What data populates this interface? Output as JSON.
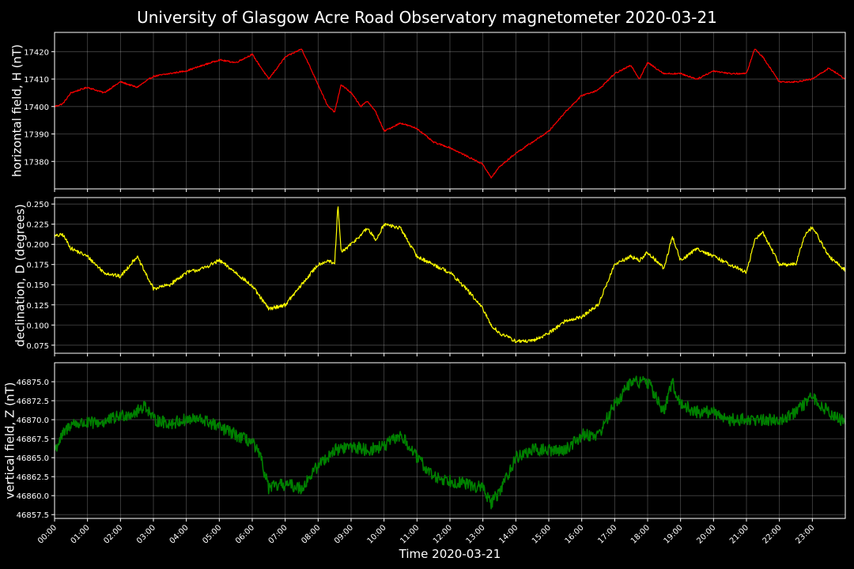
{
  "title": "University of Glasgow Acre Road Observatory magnetometer 2020-03-21",
  "chart_data": [
    {
      "type": "line",
      "ylabel": "horizontal field, H (nT)",
      "color": "#ff0000",
      "ylim": [
        17370,
        17427
      ],
      "yticks": [
        17380,
        17390,
        17400,
        17410,
        17420
      ],
      "ytick_labels": [
        "17380",
        "17390",
        "17400",
        "17410",
        "17420"
      ],
      "x_hours": [
        0,
        0.25,
        0.5,
        1,
        1.5,
        2,
        2.5,
        3,
        3.5,
        4,
        4.5,
        5,
        5.5,
        6,
        6.5,
        7,
        7.5,
        8,
        8.3,
        8.5,
        8.7,
        9,
        9.3,
        9.5,
        9.75,
        10,
        10.5,
        11,
        11.5,
        12,
        12.5,
        13,
        13.25,
        13.5,
        14,
        14.5,
        15,
        15.5,
        16,
        16.5,
        17,
        17.5,
        17.75,
        18,
        18.5,
        19,
        19.5,
        20,
        20.5,
        21,
        21.25,
        21.5,
        22,
        22.5,
        23,
        23.5,
        24
      ],
      "values": [
        17400,
        17401,
        17405,
        17407,
        17405,
        17409,
        17407,
        17411,
        17412,
        17413,
        17415,
        17417,
        17416,
        17419,
        17410,
        17418,
        17421,
        17408,
        17400,
        17398,
        17408,
        17405,
        17400,
        17402,
        17398,
        17391,
        17394,
        17392,
        17387,
        17385,
        17382,
        17379,
        17374,
        17378,
        17383,
        17387,
        17391,
        17398,
        17404,
        17406,
        17412,
        17415,
        17410,
        17416,
        17412,
        17412,
        17410,
        17413,
        17412,
        17412,
        17421,
        17418,
        17409,
        17409,
        17410,
        17414,
        17410
      ]
    },
    {
      "type": "line",
      "ylabel": "declination, D (degrees)",
      "color": "#ffff00",
      "ylim": [
        0.065,
        0.258
      ],
      "yticks": [
        0.075,
        0.1,
        0.125,
        0.15,
        0.175,
        0.2,
        0.225,
        0.25
      ],
      "ytick_labels": [
        "0.075",
        "0.100",
        "0.125",
        "0.150",
        "0.175",
        "0.200",
        "0.225",
        "0.250"
      ],
      "x_hours": [
        0,
        0.25,
        0.5,
        1,
        1.5,
        2,
        2.5,
        3,
        3.5,
        4,
        4.5,
        5,
        5.5,
        6,
        6.5,
        7,
        7.5,
        8,
        8.3,
        8.5,
        8.6,
        8.7,
        9,
        9.5,
        9.75,
        10,
        10.5,
        11,
        11.5,
        12,
        12.5,
        13,
        13.25,
        13.5,
        14,
        14.5,
        15,
        15.5,
        16,
        16.5,
        17,
        17.5,
        17.75,
        18,
        18.5,
        18.75,
        19,
        19.5,
        20,
        20.5,
        21,
        21.25,
        21.5,
        22,
        22.5,
        22.75,
        23,
        23.5,
        24
      ],
      "values": [
        0.21,
        0.212,
        0.195,
        0.185,
        0.165,
        0.16,
        0.185,
        0.145,
        0.15,
        0.165,
        0.17,
        0.18,
        0.165,
        0.148,
        0.12,
        0.125,
        0.15,
        0.175,
        0.18,
        0.175,
        0.248,
        0.19,
        0.2,
        0.22,
        0.205,
        0.225,
        0.22,
        0.185,
        0.175,
        0.165,
        0.145,
        0.12,
        0.1,
        0.09,
        0.08,
        0.08,
        0.09,
        0.105,
        0.11,
        0.125,
        0.175,
        0.185,
        0.18,
        0.19,
        0.17,
        0.21,
        0.18,
        0.195,
        0.185,
        0.175,
        0.165,
        0.205,
        0.215,
        0.175,
        0.175,
        0.21,
        0.222,
        0.185,
        0.168
      ]
    },
    {
      "type": "line",
      "ylabel": "vertical field, Z (nT)",
      "color": "#008000",
      "ylim": [
        46857,
        46877.5
      ],
      "yticks": [
        46857.5,
        46860,
        46862.5,
        46865,
        46867.5,
        46870,
        46872.5,
        46875
      ],
      "ytick_labels": [
        "46857.5",
        "46860.0",
        "46862.5",
        "46865.0",
        "46867.5",
        "46870.0",
        "46872.5",
        "46875.0"
      ],
      "x_hours": [
        0,
        0.25,
        0.5,
        1,
        1.5,
        2,
        2.5,
        2.75,
        3,
        3.5,
        4,
        4.5,
        5,
        5.5,
        6,
        6.25,
        6.5,
        7,
        7.5,
        8,
        8.5,
        9,
        9.5,
        10,
        10.5,
        11,
        11.5,
        12,
        12.5,
        13,
        13.25,
        13.5,
        14,
        14.5,
        15,
        15.5,
        16,
        16.5,
        17,
        17.5,
        18,
        18.5,
        18.75,
        19,
        19.5,
        20,
        20.5,
        21,
        21.5,
        22,
        22.5,
        23,
        23.5,
        24
      ],
      "values": [
        46866,
        46868,
        46869.5,
        46869.5,
        46869.7,
        46870.5,
        46871,
        46872,
        46870,
        46869.5,
        46870,
        46870,
        46869,
        46868,
        46867,
        46865,
        46861,
        46861.5,
        46861,
        46864,
        46866,
        46866.5,
        46866,
        46866.5,
        46868,
        46865,
        46862.5,
        46862,
        46861.5,
        46861,
        46859,
        46860.5,
        46865,
        46866,
        46866,
        46866,
        46868,
        46868,
        46872,
        46875,
        46875,
        46871,
        46875,
        46872,
        46871,
        46871,
        46870,
        46870,
        46870,
        46870,
        46871,
        46873,
        46871,
        46869.5
      ]
    }
  ],
  "xticks": [
    "00:00",
    "01:00",
    "02:00",
    "03:00",
    "04:00",
    "05:00",
    "06:00",
    "07:00",
    "08:00",
    "09:00",
    "10:00",
    "11:00",
    "12:00",
    "13:00",
    "14:00",
    "15:00",
    "16:00",
    "17:00",
    "18:00",
    "19:00",
    "20:00",
    "21:00",
    "22:00",
    "23:00"
  ],
  "xlabel": "Time 2020-03-21",
  "xlim": [
    0,
    24
  ],
  "grid": true
}
